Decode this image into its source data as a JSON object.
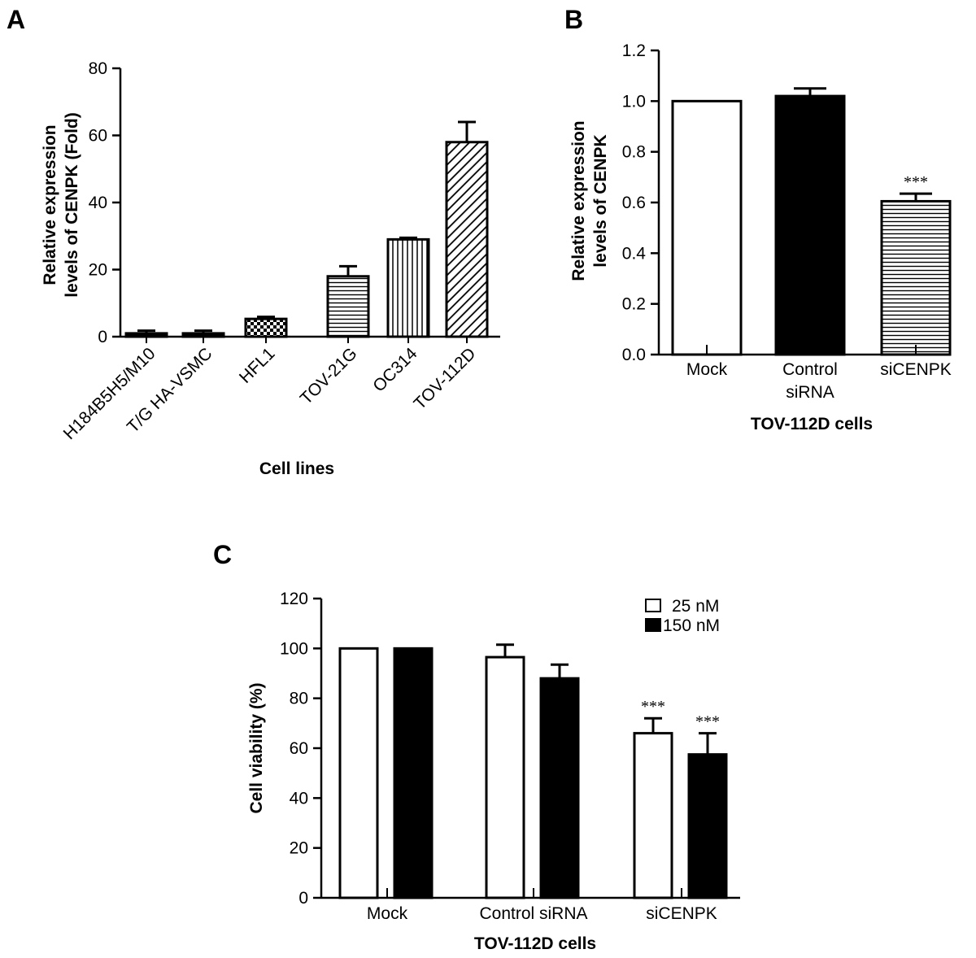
{
  "chart_data": [
    {
      "panel": "A",
      "type": "bar",
      "xlabel": "Cell lines",
      "ylabel": [
        "Relative expression",
        "levels of CENPK (Fold)"
      ],
      "ylim": [
        0,
        80
      ],
      "yticks": [
        "0",
        "20",
        "40",
        "60",
        "80"
      ],
      "categories": [
        "H184B5H5/M10",
        "T/G HA-VSMC",
        "HFL1",
        "TOV-21G",
        "OC314",
        "TOV-112D"
      ],
      "values": [
        1,
        1,
        5.3,
        18,
        29,
        58
      ],
      "errors": [
        0.8,
        0.8,
        0.6,
        3,
        0.5,
        6
      ],
      "fills": [
        "black",
        "black",
        "checker",
        "horizontal-lines",
        "vertical-lines",
        "diagonal-lines"
      ],
      "tick_label_rotation": -45
    },
    {
      "panel": "B",
      "type": "bar",
      "xlabel": "TOV-112D cells",
      "ylabel": [
        "Relative expression",
        "levels of CENPK"
      ],
      "ylim": [
        0,
        1.2
      ],
      "yticks": [
        "0.0",
        "0.2",
        "0.4",
        "0.6",
        "0.8",
        "1.0",
        "1.2"
      ],
      "categories": [
        [
          "Mock"
        ],
        [
          "Control",
          "siRNA"
        ],
        [
          "siCENPK"
        ]
      ],
      "values": [
        1.0,
        1.02,
        0.605
      ],
      "errors": [
        0,
        0.03,
        0.03
      ],
      "fills": [
        "white",
        "black",
        "horizontal-lines"
      ],
      "annotations": [
        "",
        "",
        "***"
      ]
    },
    {
      "panel": "C",
      "type": "bar",
      "xlabel": "TOV-112D cells",
      "ylabel": "Cell viability (%)",
      "ylim": [
        0,
        120
      ],
      "yticks": [
        "0",
        "20",
        "40",
        "60",
        "80",
        "100",
        "120"
      ],
      "categories": [
        "Mock",
        "Control siRNA",
        "siCENPK"
      ],
      "series": [
        {
          "name": "25 nM",
          "fill": "white",
          "values": [
            100,
            96.5,
            66
          ],
          "errors": [
            0,
            5,
            6
          ],
          "annotations": [
            "",
            "",
            "***"
          ]
        },
        {
          "name": "150 nM",
          "fill": "black",
          "values": [
            100,
            88,
            57.5
          ],
          "errors": [
            0,
            5.5,
            8.5
          ],
          "annotations": [
            "",
            "",
            "***"
          ]
        }
      ],
      "legend": "top-right"
    }
  ]
}
